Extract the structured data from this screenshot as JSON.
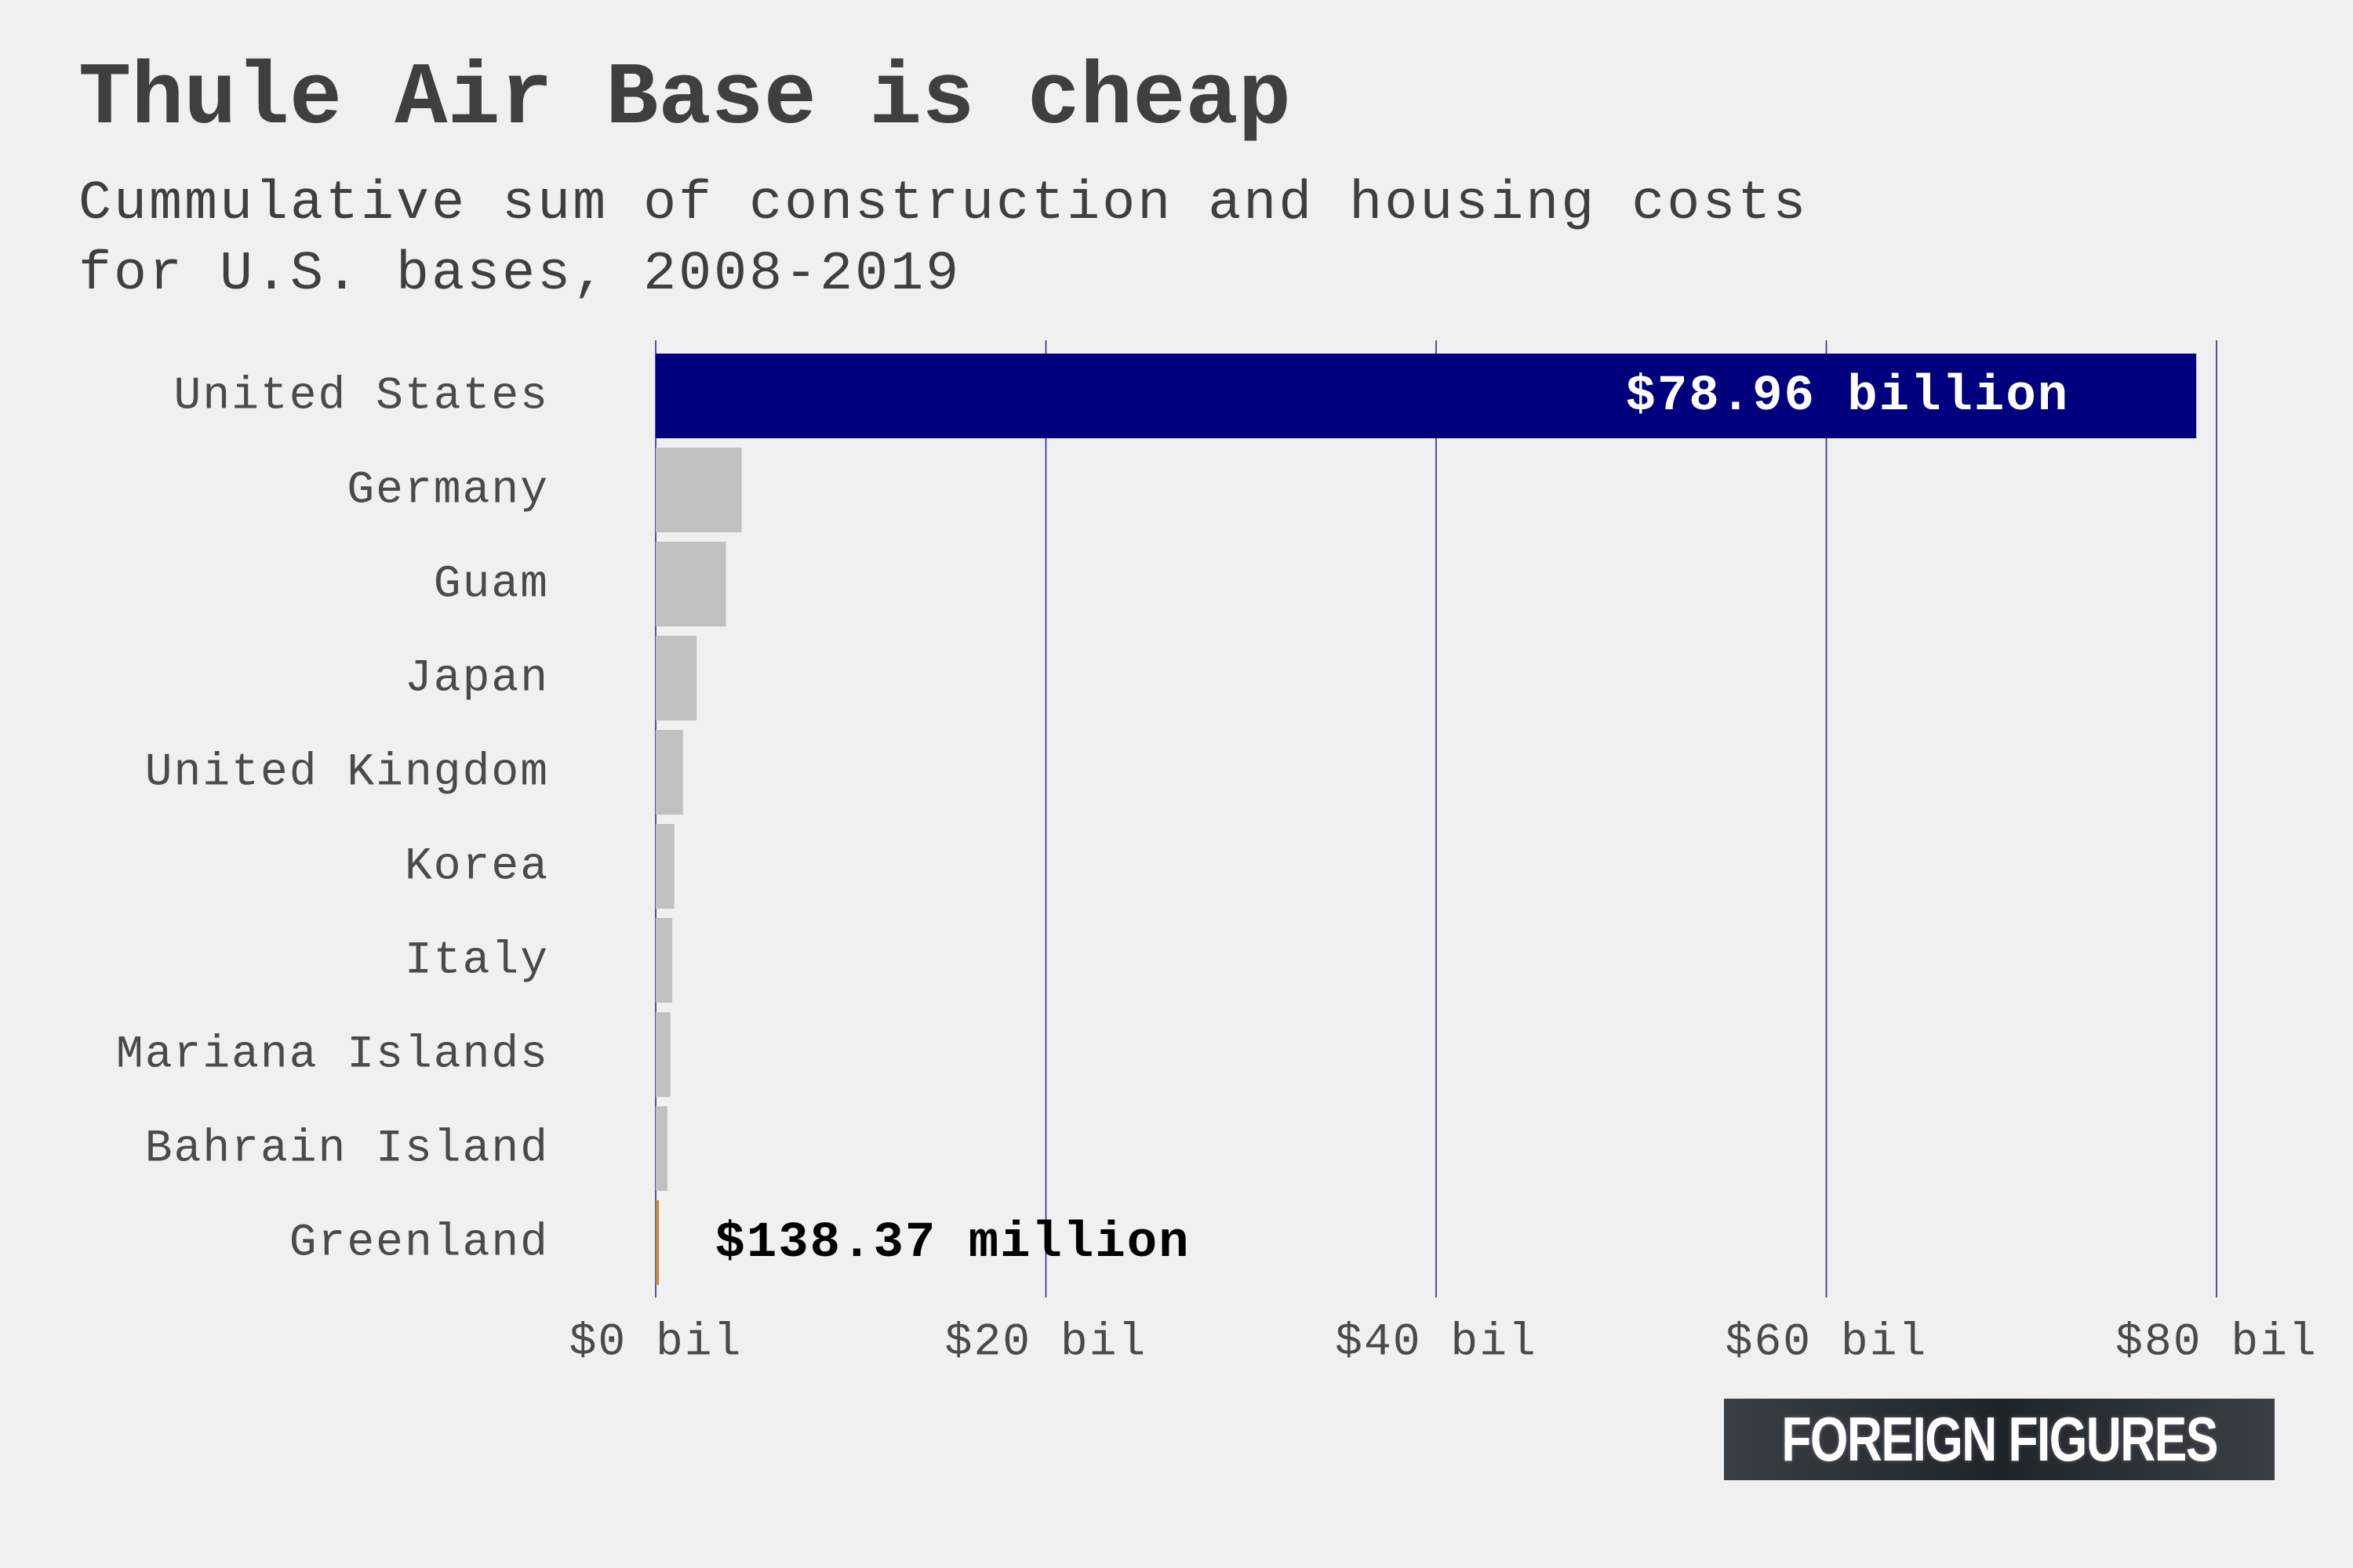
{
  "title": "Thule Air Base is cheap",
  "subtitle": "Cummulative sum of construction and housing costs for U.S. bases, 2008-2019",
  "brand": "FOREIGN FIGURES",
  "colors": {
    "background": "#f0f0f0",
    "highlight_max": "#00007f",
    "highlight_min": "#c8873a",
    "other_bars": "#c0c0c0",
    "gridline": "#2a2a8f",
    "text": "#3f3f3f"
  },
  "chart_data": {
    "type": "bar",
    "orientation": "horizontal",
    "categories": [
      "United States",
      "Germany",
      "Guam",
      "Japan",
      "United Kingdom",
      "Korea",
      "Italy",
      "Mariana Islands",
      "Bahrain Island",
      "Greenland"
    ],
    "values": [
      78.96,
      4.4,
      3.6,
      2.1,
      1.4,
      0.95,
      0.85,
      0.75,
      0.6,
      0.13837
    ],
    "value_unit": "billion USD",
    "xlim": [
      0,
      80
    ],
    "xticks": [
      0,
      20,
      40,
      60,
      80
    ],
    "xtick_labels": [
      "$0 bil",
      "$20 bil",
      "$40 bil",
      "$60 bil",
      "$80 bil"
    ],
    "grid": "vertical",
    "annotations": [
      {
        "category": "United States",
        "text": "$78.96 billion"
      },
      {
        "category": "Greenland",
        "text": "$138.37 million"
      }
    ],
    "xlabel": "",
    "ylabel": ""
  }
}
